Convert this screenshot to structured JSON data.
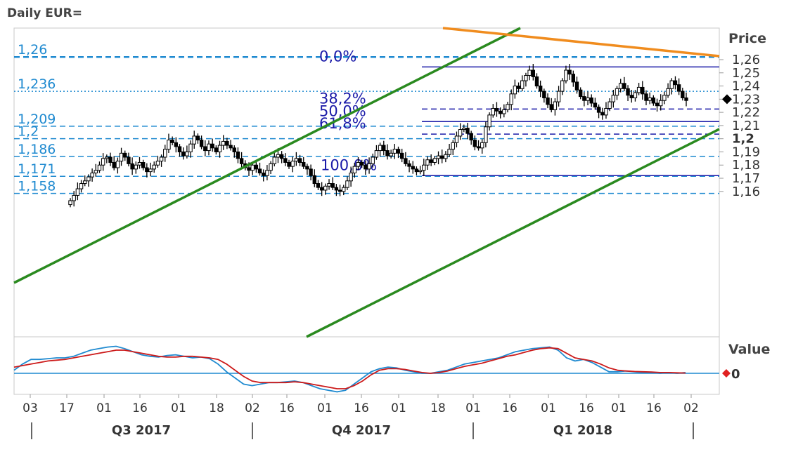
{
  "chart_data": [
    {
      "type": "candlestick",
      "title": "Daily EUR=",
      "ylabel": "Price",
      "y_ticks": [
        "1,26",
        "1,25",
        "1,24",
        "1,23",
        "1,22",
        "1,21",
        "1,2",
        "1,19",
        "1,18",
        "1,17",
        "1,16"
      ],
      "y_tick_values": [
        1.26,
        1.25,
        1.24,
        1.23,
        1.22,
        1.21,
        1.2,
        1.19,
        1.18,
        1.17,
        1.16
      ],
      "ylim": [
        1.152,
        1.266
      ],
      "current_price_marker": 1.23,
      "horizontal_levels": [
        {
          "label": "1,26",
          "value": 1.262,
          "style": "dashed"
        },
        {
          "label": "1,236",
          "value": 1.236,
          "style": "dotted"
        },
        {
          "label": "1,209",
          "value": 1.2095,
          "style": "dashed"
        },
        {
          "label": "1,2",
          "value": 1.2,
          "style": "dashed"
        },
        {
          "label": "1,186",
          "value": 1.1865,
          "style": "dashed"
        },
        {
          "label": "1,171",
          "value": 1.1715,
          "style": "dashed"
        },
        {
          "label": "1,158",
          "value": 1.1585,
          "style": "dashed"
        }
      ],
      "fibonacci_levels": [
        {
          "label": "0,0%",
          "value": 1.2545
        },
        {
          "label": "38,2%",
          "value": 1.2225
        },
        {
          "label": "50,0%",
          "value": 1.213
        },
        {
          "label": "61,8%",
          "value": 1.2035
        },
        {
          "label": "100,0%",
          "value": 1.172
        }
      ],
      "x_ticks": [
        "03",
        "17",
        "01",
        "16",
        "01",
        "18",
        "02",
        "16",
        "01",
        "16",
        "01",
        "18",
        "01",
        "16",
        "01",
        "16",
        "01",
        "16",
        "02"
      ],
      "quarters": [
        "Q3 2017",
        "Q4 2017",
        "Q1 2018"
      ],
      "ohlc_closes": [
        1.153,
        1.157,
        1.162,
        1.166,
        1.168,
        1.171,
        1.174,
        1.176,
        1.18,
        1.185,
        1.186,
        1.182,
        1.178,
        1.183,
        1.189,
        1.186,
        1.181,
        1.177,
        1.18,
        1.182,
        1.178,
        1.175,
        1.177,
        1.18,
        1.183,
        1.186,
        1.192,
        1.199,
        1.197,
        1.194,
        1.19,
        1.187,
        1.19,
        1.196,
        1.202,
        1.199,
        1.194,
        1.191,
        1.196,
        1.193,
        1.19,
        1.195,
        1.198,
        1.195,
        1.193,
        1.19,
        1.185,
        1.181,
        1.178,
        1.176,
        1.18,
        1.177,
        1.174,
        1.172,
        1.176,
        1.181,
        1.186,
        1.188,
        1.185,
        1.182,
        1.179,
        1.183,
        1.185,
        1.182,
        1.179,
        1.177,
        1.172,
        1.166,
        1.163,
        1.161,
        1.164,
        1.166,
        1.163,
        1.161,
        1.16,
        1.163,
        1.168,
        1.174,
        1.179,
        1.182,
        1.18,
        1.177,
        1.181,
        1.186,
        1.191,
        1.195,
        1.191,
        1.187,
        1.189,
        1.192,
        1.189,
        1.185,
        1.181,
        1.179,
        1.177,
        1.175,
        1.176,
        1.18,
        1.184,
        1.182,
        1.185,
        1.187,
        1.185,
        1.188,
        1.192,
        1.197,
        1.202,
        1.207,
        1.208,
        1.204,
        1.199,
        1.194,
        1.193,
        1.197,
        1.209,
        1.218,
        1.223,
        1.221,
        1.219,
        1.222,
        1.226,
        1.234,
        1.24,
        1.238,
        1.244,
        1.248,
        1.252,
        1.247,
        1.24,
        1.236,
        1.231,
        1.226,
        1.222,
        1.228,
        1.236,
        1.244,
        1.252,
        1.249,
        1.243,
        1.237,
        1.232,
        1.229,
        1.231,
        1.227,
        1.224,
        1.22,
        1.218,
        1.223,
        1.228,
        1.233,
        1.238,
        1.242,
        1.238,
        1.233,
        1.231,
        1.235,
        1.239,
        1.234,
        1.229,
        1.231,
        1.227,
        1.225,
        1.229,
        1.233,
        1.238,
        1.244,
        1.241,
        1.236,
        1.231,
        1.229
      ],
      "trend_lines": [
        {
          "color": "#2a8a1f",
          "description": "upper channel line",
          "from": 1.171,
          "to": 1.27
        },
        {
          "color": "#2a8a1f",
          "description": "lower channel line",
          "from": 1.153,
          "to": 1.23
        },
        {
          "color": "#f08c1e",
          "description": "descending resistance line",
          "from": 1.266,
          "to": 1.26
        }
      ]
    },
    {
      "type": "line",
      "ylabel": "Value",
      "y_ticks": [
        "0"
      ],
      "zero_marker_color": "#e02020",
      "series_colors": [
        "#1f8ad0",
        "#cc1a1a"
      ],
      "series": [
        {
          "values": [
            0.2,
            0.6,
            0.9,
            0.9,
            0.95,
            1.0,
            1.0,
            1.1,
            1.3,
            1.5,
            1.6,
            1.7,
            1.75,
            1.6,
            1.4,
            1.2,
            1.1,
            1.05,
            1.15,
            1.2,
            1.1,
            1.0,
            1.05,
            0.95,
            0.6,
            0.1,
            -0.3,
            -0.7,
            -0.8,
            -0.7,
            -0.6,
            -0.6,
            -0.55,
            -0.5,
            -0.6,
            -0.8,
            -1.0,
            -1.1,
            -1.2,
            -1.1,
            -0.7,
            -0.3,
            0.1,
            0.3,
            0.4,
            0.35,
            0.2,
            0.1,
            0.0,
            0.0,
            0.1,
            0.2,
            0.4,
            0.6,
            0.7,
            0.8,
            0.9,
            1.0,
            1.2,
            1.4,
            1.5,
            1.6,
            1.65,
            1.7,
            1.5,
            1.0,
            0.8,
            0.9,
            0.7,
            0.4,
            0.1,
            0.1,
            0.15,
            0.1,
            0.05,
            0.05,
            0.0,
            0.05,
            0.0,
            0.05
          ]
        },
        {
          "values": [
            0.4,
            0.5,
            0.6,
            0.7,
            0.8,
            0.85,
            0.9,
            1.0,
            1.1,
            1.2,
            1.3,
            1.4,
            1.5,
            1.5,
            1.4,
            1.3,
            1.2,
            1.1,
            1.05,
            1.05,
            1.1,
            1.1,
            1.05,
            1.0,
            0.9,
            0.6,
            0.2,
            -0.2,
            -0.5,
            -0.6,
            -0.6,
            -0.6,
            -0.6,
            -0.55,
            -0.6,
            -0.7,
            -0.8,
            -0.9,
            -1.0,
            -1.0,
            -0.8,
            -0.5,
            -0.1,
            0.2,
            0.3,
            0.3,
            0.25,
            0.15,
            0.05,
            0.0,
            0.05,
            0.15,
            0.3,
            0.45,
            0.55,
            0.65,
            0.8,
            0.95,
            1.1,
            1.2,
            1.35,
            1.5,
            1.6,
            1.65,
            1.6,
            1.3,
            1.0,
            0.9,
            0.8,
            0.6,
            0.35,
            0.2,
            0.15,
            0.12,
            0.1,
            0.08,
            0.05,
            0.05,
            0.03,
            0.02
          ]
        }
      ]
    }
  ]
}
